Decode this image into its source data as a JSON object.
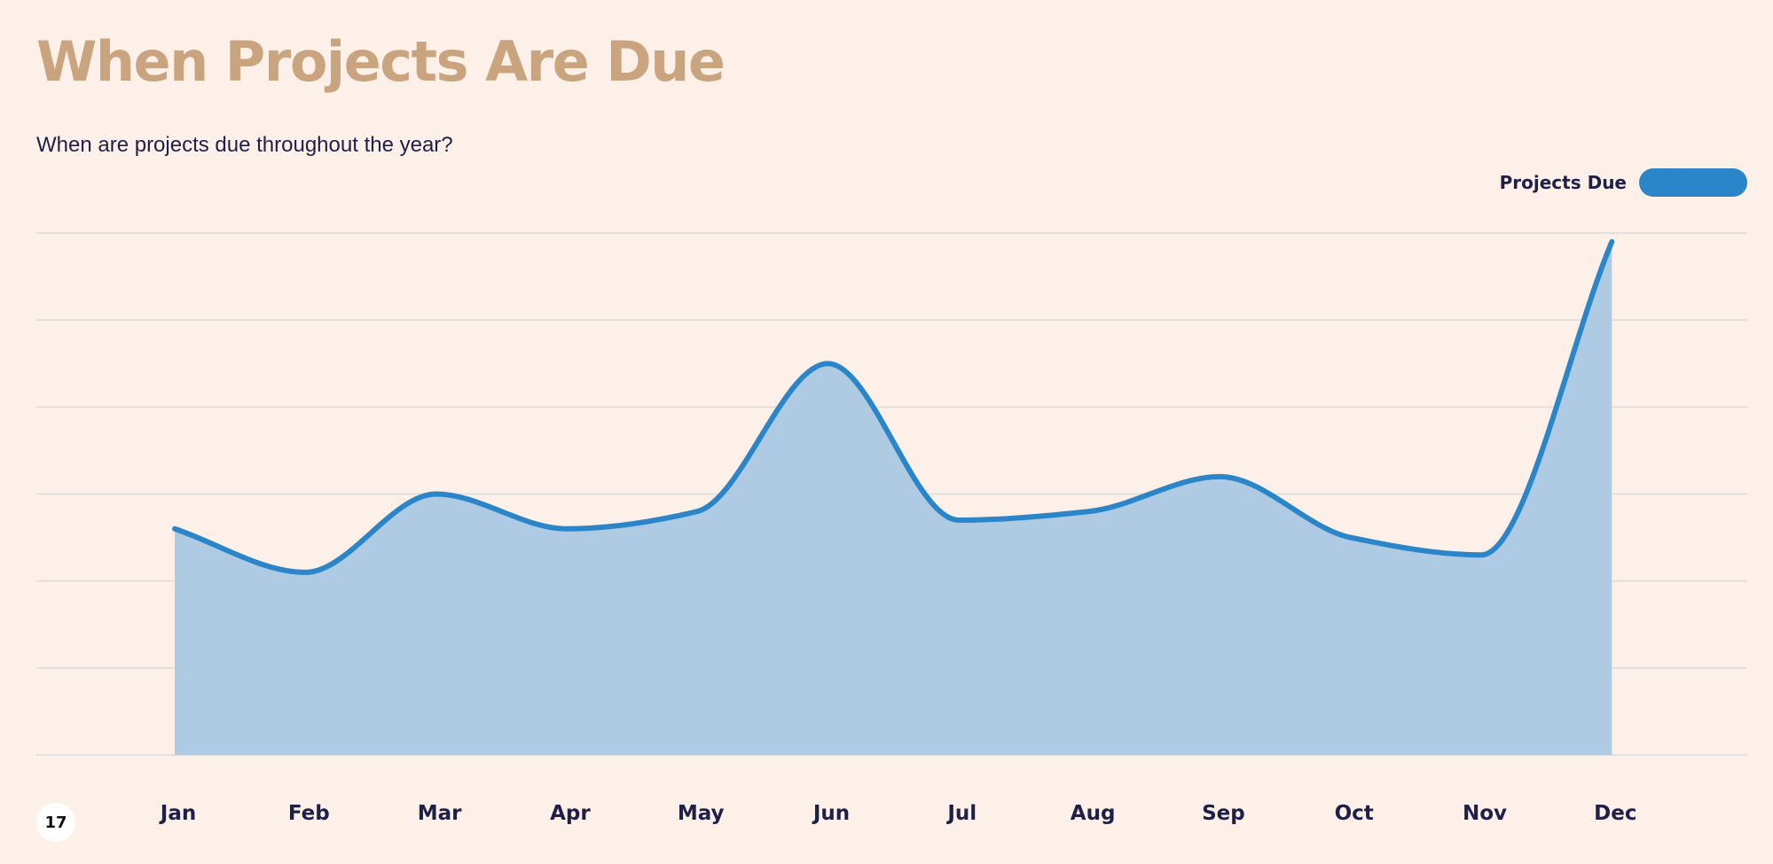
{
  "slide": {
    "title": "When Projects Are Due",
    "subtitle": "When are projects due throughout the year?",
    "page_number": "17"
  },
  "colors": {
    "background": "#fcf0e8",
    "title": "#c9a47e",
    "text": "#1f2048",
    "series_line": "#2a86c8",
    "series_fill": "#aecbe3",
    "gridline": "#d6dde0"
  },
  "chart_data": {
    "type": "area",
    "title": "",
    "xlabel": "",
    "ylabel": "",
    "categories": [
      "Jan",
      "Feb",
      "Mar",
      "Apr",
      "May",
      "Jun",
      "Jul",
      "Aug",
      "Sep",
      "Oct",
      "Nov",
      "Dec"
    ],
    "series": [
      {
        "name": "Projects Due",
        "values": [
          2.6,
          2.1,
          3.0,
          2.6,
          2.8,
          4.5,
          2.7,
          2.8,
          3.2,
          2.5,
          2.3,
          5.9
        ]
      }
    ],
    "ylim": [
      0,
      6
    ],
    "y_tick_step": 1,
    "y_tick_labels_shown": false,
    "grid": true,
    "smooth": true,
    "legend": {
      "placement": "top-right",
      "entries": [
        "Projects Due"
      ]
    }
  }
}
